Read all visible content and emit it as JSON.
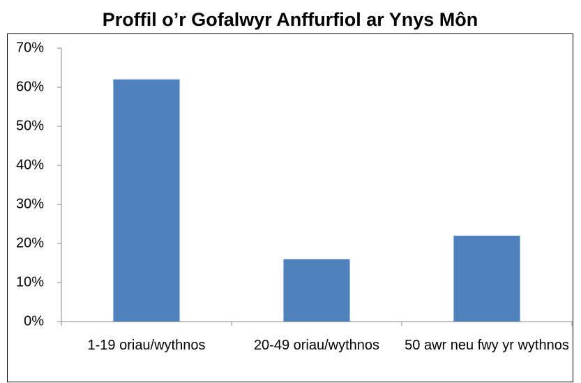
{
  "chart_data": {
    "type": "bar",
    "title": "Proffil o’r Gofalwyr Anffurfiol ar Ynys Môn",
    "categories": [
      "1-19 oriau/wythnos",
      "20-49 oriau/wythnos",
      "50 awr neu fwy yr wythnos"
    ],
    "values": [
      62,
      16,
      22
    ],
    "color": "#4f81bd",
    "ylim": [
      0,
      70
    ],
    "yticks": [
      {
        "value": 0,
        "label": "0%"
      },
      {
        "value": 10,
        "label": "10%"
      },
      {
        "value": 20,
        "label": "20%"
      },
      {
        "value": 30,
        "label": "30%"
      },
      {
        "value": 40,
        "label": "40%"
      },
      {
        "value": 50,
        "label": "50%"
      },
      {
        "value": 60,
        "label": "60%"
      },
      {
        "value": 70,
        "label": "70%"
      }
    ],
    "grid": false
  }
}
